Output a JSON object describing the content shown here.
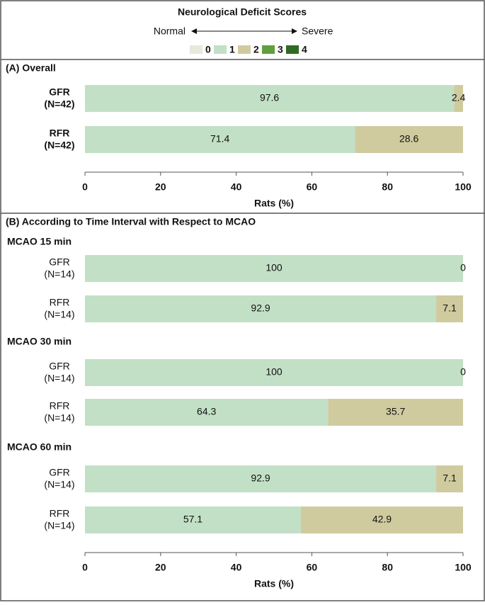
{
  "legend": {
    "title": "Neurological Deficit Scores",
    "left": "Normal",
    "right": "Severe",
    "items": [
      {
        "name": "0",
        "color": "#e6eadc"
      },
      {
        "name": "1",
        "color": "#c2e0c6"
      },
      {
        "name": "2",
        "color": "#cfcb9f"
      },
      {
        "name": "3",
        "color": "#5f9f3f"
      },
      {
        "name": "4",
        "color": "#2f6b22"
      }
    ]
  },
  "chart_data": [
    {
      "type": "stacked-barh",
      "title": "(A)  Overall",
      "x_label": "Rats (%)",
      "categories": [
        "GFR\n(N=42)",
        "RFR\n(N=42)"
      ],
      "series": [
        {
          "name": "1",
          "color": "#c2e0c6",
          "values": [
            97.6,
            71.4
          ]
        },
        {
          "name": "2",
          "color": "#cfcb9f",
          "values": [
            2.4,
            28.6
          ]
        }
      ],
      "xlim": [
        0,
        100
      ],
      "xticks": [
        0,
        20,
        40,
        60,
        80,
        100
      ]
    },
    {
      "type": "stacked-barh",
      "title": "(B)  According to Time Interval with Respect to MCAO",
      "x_label": "Rats (%)",
      "group_labels": [
        "MCAO 15 min",
        "MCAO 30 min",
        "MCAO 60 min"
      ],
      "categories": [
        "GFR\n(N=14)",
        "RFR\n(N=14)",
        "GFR\n(N=14)",
        "RFR\n(N=14)",
        "GFR\n(N=14)",
        "RFR\n(N=14)"
      ],
      "series": [
        {
          "name": "1",
          "color": "#c2e0c6",
          "values": [
            100,
            92.9,
            100,
            64.3,
            92.9,
            57.1
          ]
        },
        {
          "name": "2",
          "color": "#cfcb9f",
          "values": [
            0,
            7.1,
            0,
            35.7,
            7.1,
            42.9
          ]
        }
      ],
      "xlim": [
        0,
        100
      ],
      "xticks": [
        0,
        20,
        40,
        60,
        80,
        100
      ]
    }
  ]
}
